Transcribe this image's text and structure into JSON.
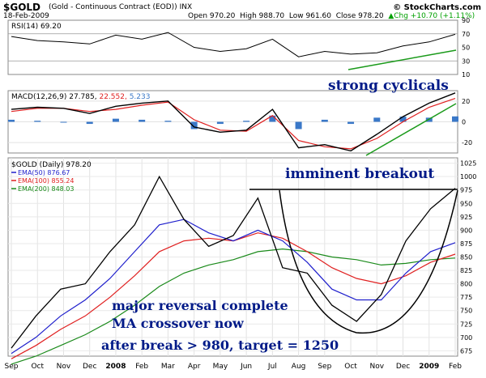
{
  "header": {
    "symbol": "$GOLD",
    "contract": "(Gold - Continuous Contract (EOD))",
    "exchange": "INX",
    "date": "18-Feb-2009",
    "open": "Open 970.20",
    "high": "High 988.70",
    "low": "Low 961.60",
    "close": "Close 978.20",
    "change": "Chg +10.70 (+1.11%)",
    "change_dir": "up-arrow-icon",
    "brand": "© StockCharts.com"
  },
  "colors": {
    "price": "#000000",
    "ema50": "#1f1fcc",
    "ema100": "#e02020",
    "ema200": "#1a8a1a",
    "macd": "#000000",
    "signal": "#e02020",
    "histogram": "#3a78c8",
    "trendline": "#1a9a1a",
    "annotation": "#001a88"
  },
  "rsi": {
    "label": "RSI(14) 69.20",
    "ticks": [
      "90",
      "70",
      "50",
      "30",
      "10"
    ]
  },
  "macd": {
    "label_name": "MACD(12,26,9)",
    "label_macd": "27.785,",
    "label_signal": "22.552,",
    "label_hist": "5.233",
    "ticks": [
      "20",
      "0",
      "-20"
    ]
  },
  "price_panel": {
    "label": "$GOLD (Daily) 978.20",
    "legend": [
      {
        "name": "EMA(50) 876.67",
        "color_key": "ema50"
      },
      {
        "name": "EMA(100) 855.24",
        "color_key": "ema100"
      },
      {
        "name": "EMA(200) 848.03",
        "color_key": "ema200"
      }
    ],
    "ticks": [
      "1025",
      "1000",
      "975",
      "950",
      "925",
      "900",
      "875",
      "850",
      "825",
      "800",
      "775",
      "750",
      "725",
      "700",
      "675"
    ]
  },
  "x_axis": [
    "Sep",
    "Oct",
    "Nov",
    "Dec",
    "2008",
    "Feb",
    "Mar",
    "Apr",
    "May",
    "Jun",
    "Jul",
    "Aug",
    "Sep",
    "Oct",
    "Nov",
    "Dec",
    "2009",
    "Feb"
  ],
  "annotations": {
    "rsi_note": "strong cyclicals",
    "breakout": "imminent breakout",
    "line1": "major reversal complete",
    "line2": "MA crossover now",
    "line3": "after break > 980, target = 1250"
  },
  "chart_data": [
    {
      "type": "line",
      "title": "RSI(14) 69.20",
      "x": [
        "Sep",
        "Oct",
        "Nov",
        "Dec",
        "2008",
        "Feb",
        "Mar",
        "Apr",
        "May",
        "Jun",
        "Jul",
        "Aug",
        "Sep",
        "Oct",
        "Nov",
        "Dec",
        "2009",
        "Feb"
      ],
      "series": [
        {
          "name": "RSI(14)",
          "values": [
            66,
            60,
            58,
            55,
            68,
            62,
            72,
            50,
            44,
            48,
            62,
            36,
            44,
            40,
            42,
            52,
            58,
            69.2
          ]
        }
      ],
      "ylim": [
        10,
        90
      ],
      "reference_lines": [
        70,
        30
      ]
    },
    {
      "type": "line",
      "title": "MACD(12,26,9) 27.785, 22.552, 5.233",
      "x": [
        "Sep",
        "Oct",
        "Nov",
        "Dec",
        "2008",
        "Feb",
        "Mar",
        "Apr",
        "May",
        "Jun",
        "Jul",
        "Aug",
        "Sep",
        "Oct",
        "Nov",
        "Dec",
        "2009",
        "Feb"
      ],
      "series": [
        {
          "name": "MACD",
          "values": [
            12,
            14,
            13,
            8,
            15,
            18,
            20,
            -5,
            -10,
            -8,
            12,
            -25,
            -22,
            -28,
            -12,
            5,
            18,
            27.785
          ]
        },
        {
          "name": "Signal",
          "values": [
            10,
            13,
            13,
            10,
            12,
            16,
            19,
            2,
            -8,
            -9,
            6,
            -18,
            -24,
            -26,
            -16,
            0,
            14,
            22.552
          ]
        },
        {
          "name": "Histogram",
          "values": [
            2,
            1,
            0,
            -2,
            3,
            2,
            1,
            -7,
            -2,
            1,
            6,
            -7,
            2,
            -2,
            4,
            5,
            4,
            5.233
          ]
        }
      ],
      "ylim": [
        -30,
        30
      ]
    },
    {
      "type": "line",
      "title": "$GOLD (Daily) 978.20",
      "x": [
        "Sep",
        "Oct",
        "Nov",
        "Dec",
        "2008",
        "Feb",
        "Mar",
        "Apr",
        "May",
        "Jun",
        "Jul",
        "Aug",
        "Sep",
        "Oct",
        "Nov",
        "Dec",
        "2009",
        "Feb",
        "Feb-18"
      ],
      "series": [
        {
          "name": "$GOLD",
          "values": [
            680,
            740,
            790,
            800,
            860,
            910,
            1000,
            920,
            870,
            890,
            960,
            830,
            820,
            760,
            730,
            780,
            880,
            940,
            978.2
          ]
        },
        {
          "name": "EMA(50) 876.67",
          "values": [
            670,
            700,
            740,
            770,
            810,
            860,
            910,
            920,
            895,
            880,
            900,
            880,
            840,
            790,
            770,
            770,
            820,
            860,
            876.67
          ]
        },
        {
          "name": "EMA(100) 855.24",
          "values": [
            660,
            685,
            715,
            740,
            775,
            815,
            860,
            880,
            885,
            880,
            895,
            885,
            860,
            830,
            810,
            800,
            815,
            840,
            855.24
          ]
        },
        {
          "name": "EMA(200) 848.03",
          "values": [
            650,
            665,
            685,
            705,
            730,
            760,
            795,
            820,
            835,
            845,
            860,
            865,
            860,
            850,
            845,
            835,
            838,
            845,
            848.03
          ]
        }
      ],
      "ylim": [
        665,
        1035
      ]
    }
  ]
}
